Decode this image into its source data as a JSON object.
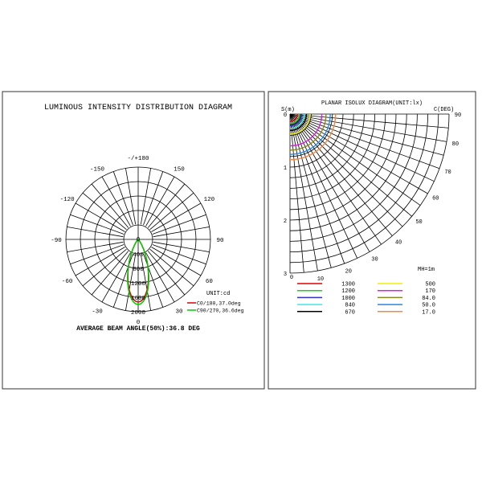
{
  "chart_data": [
    {
      "type": "polar-line",
      "title": "LUMINOUS INTENSITY DISTRIBUTION DIAGRAM",
      "unit_label": "UNIT:cd",
      "angle_labels": [
        "-/+180",
        "-150",
        "150",
        "-120",
        "120",
        "-90",
        "90",
        "-60",
        "60",
        "-30",
        "30",
        "0"
      ],
      "radial_tick_labels": [
        "0",
        "400",
        "800",
        "1200",
        "1600",
        "2000"
      ],
      "radial_range": [
        0,
        2000
      ],
      "grid": true,
      "series": [
        {
          "name": "C0/180,37.0deg",
          "color": "#e00000",
          "peak_cd": 1730,
          "beam_angle_deg": 37.0
        },
        {
          "name": "C90/270,36.6deg",
          "color": "#00cc00",
          "peak_cd": 1800,
          "beam_angle_deg": 36.6
        }
      ],
      "footer": "AVERAGE BEAM ANGLE(50%):36.8 DEG",
      "legend_placement": "bottom-right"
    },
    {
      "type": "polar-isolux",
      "title": "PLANAR ISOLUX DIAGRAM(UNIT:lx)",
      "y_axis_label": "S(m)",
      "angle_axis_label": "C(DEG)",
      "distance_tick_labels": [
        "0",
        "1",
        "2",
        "3"
      ],
      "distance_range_m": [
        0,
        3
      ],
      "angle_tick_labels": [
        "0",
        "10",
        "20",
        "30",
        "40",
        "50",
        "60",
        "70",
        "80",
        "90"
      ],
      "mounting_height": "MH=1m",
      "grid": true,
      "legend_placement": "bottom",
      "isolux": [
        {
          "label": "1300",
          "color": "#e00000",
          "radius_m": 0.14
        },
        {
          "label": "1200",
          "color": "#22cc22",
          "radius_m": 0.18
        },
        {
          "label": "1000",
          "color": "#3333cc",
          "radius_m": 0.22
        },
        {
          "label": "840",
          "color": "#33eeee",
          "radius_m": 0.27
        },
        {
          "label": "670",
          "color": "#000000",
          "radius_m": 0.31
        },
        {
          "label": "500",
          "color": "#eeee00",
          "radius_m": 0.38
        },
        {
          "label": "170",
          "color": "#dd22dd",
          "radius_m": 0.6
        },
        {
          "label": "84.0",
          "color": "#888822",
          "radius_m": 0.68
        },
        {
          "label": "50.0",
          "color": "#2288ee",
          "radius_m": 0.76
        },
        {
          "label": "17.0",
          "color": "#ee8844",
          "radius_m": 0.86
        }
      ]
    }
  ]
}
